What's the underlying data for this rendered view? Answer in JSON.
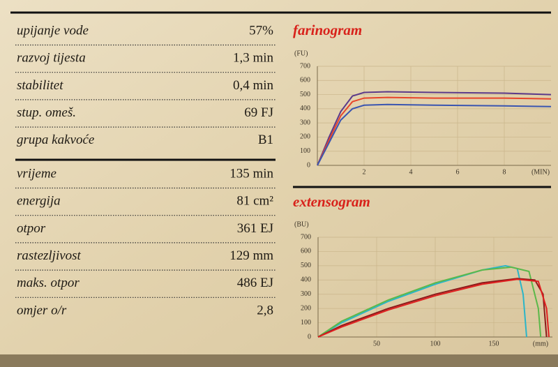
{
  "table": {
    "groups": [
      [
        [
          "upijanje vode",
          "57%"
        ],
        [
          "razvoj tijesta",
          "1,3 min"
        ],
        [
          "stabilitet",
          "0,4 min"
        ],
        [
          "stup. omeš.",
          "69 FJ"
        ],
        [
          "grupa kakvoće",
          "B1"
        ]
      ],
      [
        [
          "vrijeme",
          "135 min"
        ],
        [
          "energija",
          "81 cm²"
        ],
        [
          "otpor",
          "361 EJ"
        ],
        [
          "rastezljivost",
          "129 mm"
        ],
        [
          "maks. otpor",
          "486 EJ"
        ],
        [
          "omjer o/r",
          "2,8"
        ]
      ]
    ]
  },
  "charts": [
    {
      "type": "line",
      "title": "farinogram",
      "y_label": "(FU)",
      "x_label": "(MIN)",
      "xlim": [
        0,
        10
      ],
      "ylim": [
        0,
        700
      ],
      "xticks": [
        2,
        4,
        6,
        8
      ],
      "yticks": [
        0,
        100,
        200,
        300,
        400,
        500,
        600,
        700
      ],
      "grid": true,
      "series": [
        {
          "color": "#5b3a8a",
          "x": [
            0,
            0.5,
            1,
            1.5,
            2,
            3,
            5,
            8,
            10
          ],
          "values": [
            0,
            200,
            380,
            490,
            515,
            520,
            515,
            510,
            500
          ]
        },
        {
          "color": "#e8452a",
          "x": [
            0,
            0.5,
            1,
            1.5,
            2,
            3,
            5,
            8,
            10
          ],
          "values": [
            0,
            180,
            350,
            450,
            475,
            480,
            475,
            475,
            470
          ]
        },
        {
          "color": "#3a55b0",
          "x": [
            0,
            0.5,
            1,
            1.5,
            2,
            3,
            5,
            8,
            10
          ],
          "values": [
            0,
            160,
            320,
            400,
            425,
            430,
            425,
            420,
            415
          ]
        }
      ]
    },
    {
      "type": "line",
      "title": "extensogram",
      "y_label": "(BU)",
      "x_label": "(mm)",
      "xlim": [
        0,
        200
      ],
      "ylim": [
        0,
        700
      ],
      "xticks": [
        50,
        100,
        150
      ],
      "yticks": [
        0,
        100,
        200,
        300,
        400,
        500,
        600,
        700
      ],
      "grid": true,
      "series": [
        {
          "color": "#2bb5c8",
          "x": [
            0,
            20,
            60,
            100,
            140,
            160,
            170,
            175,
            178
          ],
          "values": [
            0,
            100,
            250,
            370,
            470,
            500,
            480,
            300,
            0
          ]
        },
        {
          "color": "#5cb84a",
          "x": [
            0,
            20,
            60,
            100,
            140,
            165,
            180,
            188,
            190
          ],
          "values": [
            0,
            110,
            260,
            380,
            470,
            490,
            460,
            200,
            0
          ]
        },
        {
          "color": "#8b1a1a",
          "x": [
            0,
            20,
            60,
            100,
            140,
            170,
            185,
            192,
            195
          ],
          "values": [
            0,
            80,
            200,
            300,
            380,
            410,
            400,
            300,
            0
          ]
        },
        {
          "color": "#e02020",
          "x": [
            0,
            20,
            60,
            100,
            140,
            170,
            188,
            195,
            197
          ],
          "values": [
            0,
            70,
            190,
            290,
            370,
            405,
            390,
            200,
            0
          ]
        }
      ]
    }
  ]
}
